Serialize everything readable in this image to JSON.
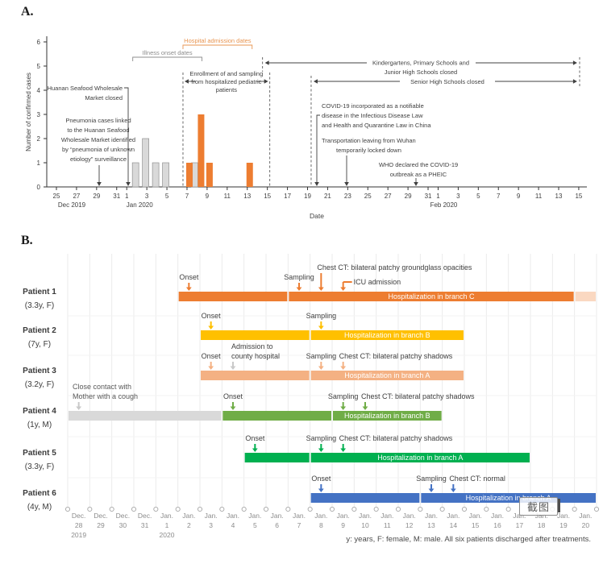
{
  "figure": {
    "panel_a_label": "A.",
    "panel_b_label": "B.",
    "footer_note": "y: years, F: female, M: male. All six patients discharged after treatments.",
    "watermark": "截图"
  },
  "colors": {
    "orange": "#ED7D31",
    "orange_light": "#F4B183",
    "yellow": "#FFC000",
    "green": "#70AD47",
    "green_bright": "#00B050",
    "blue": "#4472C4",
    "gray_bar_fill": "#D9D9D9",
    "gray_bar_stroke": "#909090",
    "gray_arrow": "#C9C9C9",
    "annotation_orange": "#E89450",
    "text_dark": "#404040",
    "axis_gray": "#8C8C8C"
  },
  "chart_data": [
    {
      "type": "bar",
      "ylabel": "Number of confirmed cases",
      "xlabel": "Date",
      "ylim": [
        0,
        6
      ],
      "yticks": [
        0,
        1,
        2,
        3,
        4,
        5,
        6
      ],
      "xticks": [
        "Dec 25",
        "Dec 27",
        "Dec 29",
        "Dec 31",
        "Jan 1",
        "Jan 3",
        "Jan 5",
        "Jan 7",
        "Jan 9",
        "Jan 11",
        "Jan 13",
        "Jan 15",
        "Jan 17",
        "Jan 19",
        "Jan 21",
        "Jan 23",
        "Jan 25",
        "Jan 27",
        "Jan 29",
        "Jan 31",
        "Feb 1",
        "Feb 3",
        "Feb 5",
        "Feb 7",
        "Feb 9",
        "Feb 11",
        "Feb 13",
        "Feb 15"
      ],
      "month_labels": [
        {
          "text": "Dec 2019",
          "anchor": "Dec 25"
        },
        {
          "text": "Jan 2020",
          "anchor": "Jan 1"
        },
        {
          "text": "Feb 2020",
          "anchor": "Feb 1"
        }
      ],
      "series": [
        {
          "name": "Illness onset dates",
          "color_key": "gray",
          "bars": [
            [
              "Jan 2",
              1
            ],
            [
              "Jan 3",
              2
            ],
            [
              "Jan 4",
              1
            ],
            [
              "Jan 5",
              1
            ],
            [
              "Jan 8",
              1
            ]
          ]
        },
        {
          "name": "Hospital admission dates",
          "color_key": "orange",
          "bars": [
            [
              "Jan 7",
              1
            ],
            [
              "Jan 8",
              3
            ],
            [
              "Jan 9",
              1
            ],
            [
              "Jan 13",
              1
            ]
          ]
        }
      ],
      "brackets": [
        {
          "label": "Illness onset dates",
          "from": "Jan 2",
          "to": "Jan 8",
          "color_key": "gray"
        },
        {
          "label": "Hospital admission dates",
          "from": "Jan 7",
          "to": "Jan 13",
          "color_key": "orange"
        }
      ],
      "range_annotation": {
        "lines": [
          "Enrollment of and sampling",
          "from hospitalized pediatric",
          "patients"
        ],
        "from": "Jan 7",
        "to": "Jan 15"
      },
      "span_arrows": [
        {
          "lines": [
            "Kindergartens, Primary Schools and",
            "Junior High Schools closed"
          ],
          "from": "Jan 15",
          "to": "Feb 15"
        },
        {
          "lines": [
            "Senior High Schools closed"
          ],
          "from": "Jan 20",
          "to": "Feb 15"
        }
      ],
      "event_annotations": [
        {
          "lines": [
            "Huanan Seafood Wholesale",
            "Market closed"
          ],
          "date": "Jan 1"
        },
        {
          "lines": [
            "Pneumonia cases linked",
            "to the Huanan Seafood",
            "Wholesale Market identified",
            "by “pneumonia of unknown",
            "etiology” surveillance"
          ],
          "date": "Dec 29"
        },
        {
          "lines": [
            "COVID-19 incorporated as a notifiable",
            "disease in the Infectious Disease Law",
            "and Health and Quarantine Law in China"
          ],
          "date": "Jan 20"
        },
        {
          "lines": [
            "Transportation leaving from Wuhan",
            "temporarily locked down"
          ],
          "date": "Jan 23"
        },
        {
          "lines": [
            "WHO declared the COVID-19",
            "outbreak as a PHEIC"
          ],
          "date": "Jan 30"
        }
      ]
    },
    {
      "type": "gantt",
      "axis_start": "Dec 28 2019",
      "days": [
        {
          "m": "Dec.",
          "d": "28",
          "y": "2019"
        },
        {
          "m": "Dec.",
          "d": "29"
        },
        {
          "m": "Dec.",
          "d": "30"
        },
        {
          "m": "Dec.",
          "d": "31"
        },
        {
          "m": "Jan.",
          "d": "1",
          "y": "2020"
        },
        {
          "m": "Jan.",
          "d": "2"
        },
        {
          "m": "Jan.",
          "d": "3"
        },
        {
          "m": "Jan.",
          "d": "4"
        },
        {
          "m": "Jan.",
          "d": "5"
        },
        {
          "m": "Jan.",
          "d": "6"
        },
        {
          "m": "Jan.",
          "d": "7"
        },
        {
          "m": "Jan.",
          "d": "8"
        },
        {
          "m": "Jan.",
          "d": "9"
        },
        {
          "m": "Jan.",
          "d": "10"
        },
        {
          "m": "Jan.",
          "d": "11"
        },
        {
          "m": "Jan.",
          "d": "12"
        },
        {
          "m": "Jan.",
          "d": "13"
        },
        {
          "m": "Jan.",
          "d": "14"
        },
        {
          "m": "Jan.",
          "d": "15"
        },
        {
          "m": "Jan.",
          "d": "16"
        },
        {
          "m": "Jan.",
          "d": "17"
        },
        {
          "m": "Jan.",
          "d": "18"
        },
        {
          "m": "Jan.",
          "d": "19"
        },
        {
          "m": "Jan.",
          "d": "20"
        }
      ],
      "patients": [
        {
          "name": "Patient 1",
          "info": "(3.3y, F)",
          "color": "#ED7D31",
          "segments": [
            {
              "s": 5,
              "e": 10
            },
            {
              "s": 10,
              "e": 23,
              "label": "Hospitalization in branch C"
            },
            {
              "s": 23,
              "e": 24,
              "faded": true
            }
          ],
          "events": [
            {
              "label": "Onset",
              "d": 5.5
            },
            {
              "label": "Sampling",
              "d": 10.5
            },
            {
              "label": "Chest CT: bilateral patchy groundglass opacities",
              "d": 11.5,
              "style": "up2",
              "align": "left"
            },
            {
              "label": "ICU admission",
              "d": 12.5,
              "style": "elbow"
            }
          ]
        },
        {
          "name": "Patient 2",
          "info": "(7y, F)",
          "color": "#FFC000",
          "segments": [
            {
              "s": 6,
              "e": 11
            },
            {
              "s": 11,
              "e": 18,
              "label": "Hospitalization in branch B"
            }
          ],
          "events": [
            {
              "label": "Onset",
              "d": 6.5
            },
            {
              "label": "Sampling",
              "d": 11.5
            }
          ]
        },
        {
          "name": "Patient 3",
          "info": "(3.2y, F)",
          "color": "#F4B183",
          "segments": [
            {
              "s": 6,
              "e": 11
            },
            {
              "s": 11,
              "e": 18,
              "label": "Hospitalization in branch A"
            }
          ],
          "events": [
            {
              "label": "Onset",
              "d": 6.5
            },
            {
              "lines": [
                "Admission to",
                "county hospital"
              ],
              "d": 7.5,
              "gray": true,
              "style": "twoline",
              "align": "left"
            },
            {
              "label": "Sampling",
              "d": 11.5
            },
            {
              "label": "Chest CT: bilateral patchy shadows",
              "d": 12.5,
              "align": "left"
            }
          ]
        },
        {
          "name": "Patient 4",
          "info": "(1y, M)",
          "color": "#70AD47",
          "segments": [
            {
              "s": 0,
              "e": 7,
              "color": "#D9D9D9"
            },
            {
              "s": 7,
              "e": 12
            },
            {
              "s": 12,
              "e": 17,
              "label": "Hospitalization in branch B"
            }
          ],
          "events": [
            {
              "lines": [
                "Close contact with",
                "Mother with a cough"
              ],
              "d": 0.5,
              "gray": true,
              "style": "block"
            },
            {
              "label": "Onset",
              "d": 7.5
            },
            {
              "label": "Sampling",
              "d": 12.5
            },
            {
              "label": "Chest CT: bilateral patchy shadows",
              "d": 13.5,
              "align": "left"
            }
          ]
        },
        {
          "name": "Patient 5",
          "info": "(3.3y, F)",
          "color": "#00B050",
          "segments": [
            {
              "s": 8,
              "e": 11
            },
            {
              "s": 11,
              "e": 21,
              "label": "Hospitalization in branch A"
            }
          ],
          "events": [
            {
              "label": "Onset",
              "d": 8.5
            },
            {
              "label": "Sampling",
              "d": 11.5
            },
            {
              "label": "Chest CT: bilateral patchy shadows",
              "d": 12.5,
              "align": "left"
            }
          ]
        },
        {
          "name": "Patient 6",
          "info": "(4y, M)",
          "color": "#4472C4",
          "segments": [
            {
              "s": 11,
              "e": 16
            },
            {
              "s": 16,
              "e": 24,
              "label": "Hospitalization in branch A"
            }
          ],
          "events": [
            {
              "label": "Onset",
              "d": 11.5
            },
            {
              "label": "Sampling",
              "d": 16.5
            },
            {
              "label": "Chest CT: normal",
              "d": 17.5,
              "align": "left"
            }
          ]
        }
      ]
    }
  ]
}
